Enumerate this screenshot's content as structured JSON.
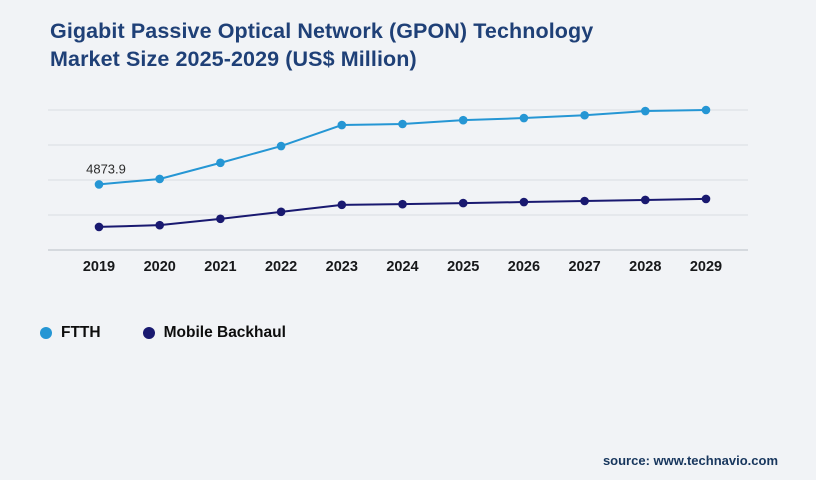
{
  "page": {
    "source_text": "source: www.technavio.com"
  },
  "colors": {
    "background": "#f1f3f6",
    "title": "#1f4077",
    "source": "#17365d",
    "grid": "#d9dce1",
    "axis": "#b9bfc7",
    "tick_label": "#17181a",
    "point_label": "#2b2b2b"
  },
  "chart_data": {
    "type": "line",
    "title": "Gigabit Passive Optical Network (GPON) Technology Market Size 2025-2029 (US$ Million)",
    "categories": [
      "2019",
      "2020",
      "2021",
      "2022",
      "2023",
      "2024",
      "2025",
      "2026",
      "2027",
      "2028",
      "2029"
    ],
    "series": [
      {
        "name": "FTTH",
        "color": "#2596d4",
        "values": [
          4873.9,
          5030,
          5490,
          5970,
          6570,
          6600,
          6710,
          6770,
          6850,
          6970,
          7000
        ]
      },
      {
        "name": "Mobile Backhaul",
        "color": "#191970",
        "values": [
          3660,
          3710,
          3890,
          4090,
          4290,
          4310,
          4340,
          4370,
          4400,
          4430,
          4460
        ]
      }
    ],
    "annotations": [
      {
        "text": "4873.9",
        "series": "FTTH",
        "index": 0
      }
    ],
    "xlabel": "",
    "ylabel": "",
    "ylim": [
      3000,
      7000
    ],
    "grid_step": 1000,
    "grid": "horizontal",
    "y_tick_labels_visible": false,
    "legend_position": "bottom-left"
  }
}
